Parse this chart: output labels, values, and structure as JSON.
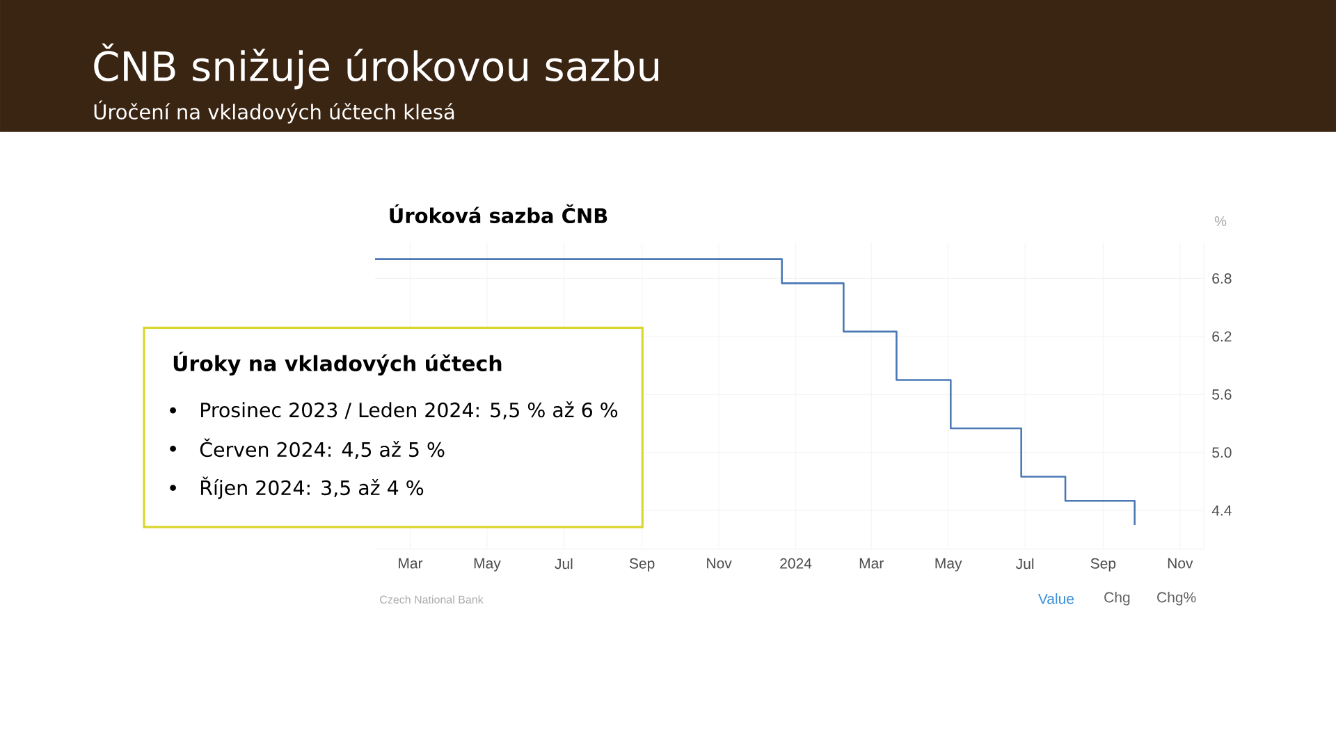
{
  "chart_data": {
    "type": "step",
    "title": "ČNB snižuje úrokovou sazbu",
    "subtitle": "Úročení na vkladových účtech klesá",
    "ylabel": "%",
    "x": [
      "2023-02-01",
      "2023-12-21",
      "2024-02-08",
      "2024-03-21",
      "2024-05-03",
      "2024-06-28",
      "2024-08-02",
      "2024-09-26"
    ],
    "series": [
      {
        "name": "Úroková sazba ČNB",
        "color": "#4a78b5",
        "values": [
          7.0,
          6.75,
          6.25,
          5.75,
          5.25,
          4.75,
          4.5,
          4.25
        ]
      }
    ],
    "xlim": [
      "2023-02-01",
      "2024-11-20"
    ],
    "xticks": [
      {
        "value": "2023-03",
        "label": "Mar"
      },
      {
        "value": "2023-05",
        "label": "May"
      },
      {
        "value": "2023-07",
        "label": "Jul"
      },
      {
        "value": "2023-09",
        "label": "Sep"
      },
      {
        "value": "2023-11",
        "label": "Nov"
      },
      "2024",
      {
        "value": "2024-03",
        "label": "Mar"
      },
      {
        "value": "2024-05",
        "label": "May"
      },
      {
        "value": "2024-07",
        "label": "Jul"
      },
      {
        "value": "2024-09",
        "label": "Sep"
      },
      {
        "value": "2024-11",
        "label": "Nov"
      }
    ],
    "ylim": [
      4.0,
      7.17
    ],
    "yticks": [
      4.4,
      {
        "value": 5.0,
        "label": "5.0"
      },
      5.6,
      6.2,
      6.8
    ],
    "grid": true,
    "annotations": [
      "Úroky na vkladových účtech",
      "Prosinec 2023 / Leden 2024: 5,5 % až 6 %",
      "Červen 2024: 4,5 až 5 %",
      "Říjen 2024: 3,5 až 4 %",
      "Czech National Bank",
      "Value",
      "Chg",
      "Chg%"
    ]
  }
}
